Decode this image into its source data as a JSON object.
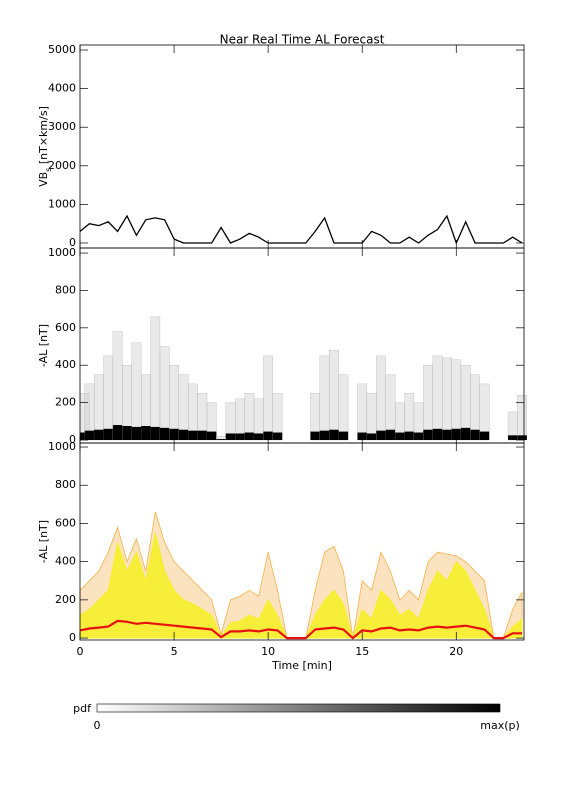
{
  "chart_data": [
    {
      "type": "line",
      "title": "Near Real Time AL Forecast",
      "ylabel": [
        "VB",
        "s",
        " [nT×km/s]"
      ],
      "color": "#000000",
      "x": [
        0,
        0.5,
        1,
        1.5,
        2,
        2.5,
        3,
        3.5,
        4,
        4.5,
        5,
        5.5,
        6,
        6.5,
        7,
        7.5,
        8,
        8.5,
        9,
        9.5,
        10,
        10.5,
        11,
        11.5,
        12,
        12.5,
        13,
        13.5,
        14,
        14.5,
        15,
        15.5,
        16,
        16.5,
        17,
        17.5,
        18,
        18.5,
        19,
        19.5,
        20,
        20.5,
        21,
        21.5,
        22,
        22.5,
        23,
        23.5
      ],
      "values": [
        300,
        500,
        450,
        550,
        300,
        700,
        200,
        600,
        650,
        600,
        100,
        0,
        0,
        0,
        0,
        400,
        0,
        100,
        250,
        150,
        0,
        0,
        0,
        0,
        0,
        300,
        650,
        0,
        0,
        0,
        0,
        300,
        200,
        0,
        0,
        150,
        0,
        200,
        350,
        700,
        0,
        550,
        0,
        0,
        0,
        0,
        150,
        0
      ],
      "xlim": [
        0,
        23.6
      ],
      "xticks": [
        0,
        5,
        10,
        15,
        20
      ],
      "ylim": [
        -130,
        5130
      ],
      "yticks": [
        0,
        1000,
        2000,
        3000,
        4000,
        5000
      ]
    },
    {
      "type": "heatmap",
      "ylabel": [
        "-AL [nT]"
      ],
      "color": "#000000",
      "x": [
        0,
        0.5,
        1,
        1.5,
        2,
        2.5,
        3,
        3.5,
        4,
        4.5,
        5,
        5.5,
        6,
        6.5,
        7,
        7.5,
        8,
        8.5,
        9,
        9.5,
        10,
        10.5,
        11,
        11.5,
        12,
        12.5,
        13,
        13.5,
        14,
        14.5,
        15,
        15.5,
        16,
        16.5,
        17,
        17.5,
        18,
        18.5,
        19,
        19.5,
        20,
        20.5,
        21,
        21.5,
        22,
        22.5,
        23,
        23.5
      ],
      "upper": [
        250,
        300,
        350,
        450,
        580,
        400,
        520,
        350,
        660,
        500,
        400,
        350,
        300,
        250,
        200,
        20,
        200,
        220,
        250,
        220,
        450,
        250,
        0,
        0,
        0,
        250,
        450,
        480,
        350,
        0,
        300,
        250,
        450,
        350,
        200,
        250,
        200,
        400,
        450,
        440,
        430,
        400,
        350,
        300,
        0,
        0,
        150,
        240
      ],
      "core": [
        40,
        50,
        55,
        60,
        80,
        75,
        70,
        75,
        70,
        65,
        60,
        55,
        50,
        50,
        45,
        5,
        35,
        35,
        40,
        35,
        45,
        40,
        0,
        0,
        0,
        45,
        50,
        55,
        45,
        0,
        40,
        35,
        50,
        55,
        40,
        45,
        40,
        55,
        60,
        55,
        60,
        65,
        55,
        45,
        0,
        0,
        25,
        25
      ],
      "xlim": [
        0,
        23.6
      ],
      "xticks": [
        0,
        5,
        10,
        15,
        20
      ],
      "ylim": [
        -16,
        1027
      ],
      "yticks": [
        0,
        200,
        400,
        600,
        800,
        1000
      ]
    },
    {
      "type": "area",
      "ylabel": [
        "-AL [nT]"
      ],
      "xlabel": "Time [min]",
      "x": [
        0,
        0.5,
        1,
        1.5,
        2,
        2.5,
        3,
        3.5,
        4,
        4.5,
        5,
        5.5,
        6,
        6.5,
        7,
        7.5,
        8,
        8.5,
        9,
        9.5,
        10,
        10.5,
        11,
        11.5,
        12,
        12.5,
        13,
        13.5,
        14,
        14.5,
        15,
        15.5,
        16,
        16.5,
        17,
        17.5,
        18,
        18.5,
        19,
        19.5,
        20,
        20.5,
        21,
        21.5,
        22,
        22.5,
        23,
        23.5
      ],
      "series": [
        {
          "color": "#f5b04a",
          "values": [
            250,
            300,
            350,
            450,
            580,
            400,
            520,
            350,
            660,
            500,
            400,
            350,
            300,
            250,
            200,
            20,
            200,
            220,
            250,
            220,
            450,
            250,
            0,
            0,
            0,
            250,
            450,
            480,
            350,
            0,
            300,
            250,
            450,
            350,
            200,
            250,
            200,
            400,
            450,
            440,
            430,
            400,
            350,
            300,
            0,
            0,
            150,
            240
          ]
        },
        {
          "color": "#f5f020",
          "values": [
            120,
            150,
            200,
            250,
            500,
            350,
            450,
            300,
            550,
            350,
            250,
            200,
            180,
            150,
            120,
            10,
            80,
            90,
            120,
            100,
            200,
            120,
            0,
            0,
            0,
            120,
            200,
            250,
            180,
            0,
            150,
            100,
            250,
            200,
            120,
            150,
            100,
            250,
            350,
            300,
            400,
            350,
            250,
            150,
            0,
            0,
            60,
            100
          ]
        },
        {
          "color": "#e81010",
          "values": [
            40,
            50,
            55,
            60,
            90,
            85,
            75,
            80,
            75,
            70,
            65,
            60,
            55,
            50,
            45,
            5,
            35,
            35,
            40,
            35,
            45,
            40,
            0,
            0,
            0,
            45,
            50,
            55,
            45,
            0,
            40,
            35,
            50,
            55,
            40,
            45,
            40,
            55,
            60,
            55,
            60,
            65,
            55,
            45,
            0,
            0,
            25,
            25
          ]
        }
      ],
      "xlim": [
        0,
        23.6
      ],
      "xticks": [
        0,
        5,
        10,
        15,
        20
      ],
      "ylim": [
        -10,
        1021
      ],
      "yticks": [
        0,
        200,
        400,
        600,
        800,
        1000
      ]
    }
  ],
  "colorbar": {
    "label": "pdf",
    "min_label": "0",
    "max_label": "max(p)"
  }
}
